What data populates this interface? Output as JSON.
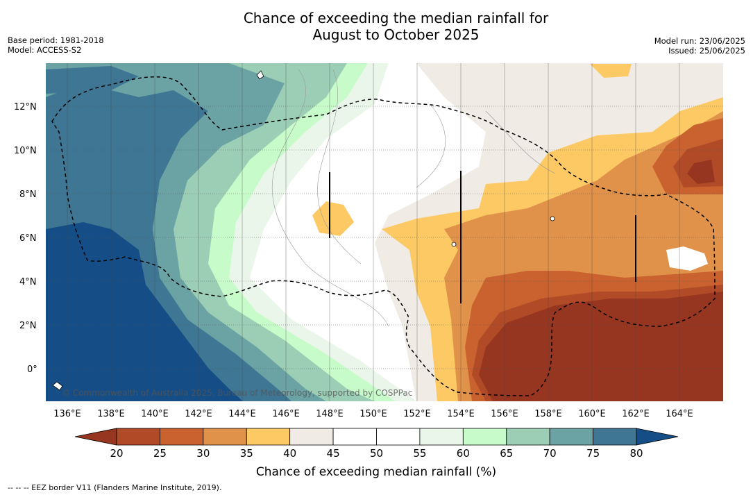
{
  "title": {
    "line1": "Chance of exceeding the median rainfall for",
    "line2": "August to October 2025"
  },
  "meta": {
    "base_period": "Base period: 1981-2018",
    "model": "Model: ACCESS-S2",
    "model_run": "Model run: 23/06/2025",
    "issued": "Issued: 25/06/2025"
  },
  "map": {
    "lat_labels": [
      "12°N",
      "10°N",
      "8°N",
      "6°N",
      "4°N",
      "2°N",
      "0°"
    ],
    "lon_labels": [
      "136°E",
      "138°E",
      "140°E",
      "142°E",
      "144°E",
      "146°E",
      "148°E",
      "150°E",
      "152°E",
      "154°E",
      "156°E",
      "158°E",
      "160°E",
      "162°E",
      "164°E"
    ],
    "copyright": "© Commonwealth of Australia 2025, Bureau of Meteorology, supported by COSPPac"
  },
  "colorbar": {
    "ticks": [
      "20",
      "25",
      "30",
      "35",
      "40",
      "45",
      "50",
      "55",
      "60",
      "65",
      "70",
      "75",
      "80"
    ],
    "colors": [
      "#973620",
      "#b04a27",
      "#c9622f",
      "#e0924a",
      "#fcc964",
      "#f0ebe4",
      "#ffffff",
      "#ffffff",
      "#eaf6ea",
      "#c7fbca",
      "#9bceb5",
      "#6ba2a4",
      "#3e7694",
      "#154d86"
    ],
    "title": "Chance of exceeding median rainfall (%)"
  },
  "footer": {
    "legend": "--  --  -- EEZ border V11 (Flanders Marine Institute, 2019)."
  }
}
